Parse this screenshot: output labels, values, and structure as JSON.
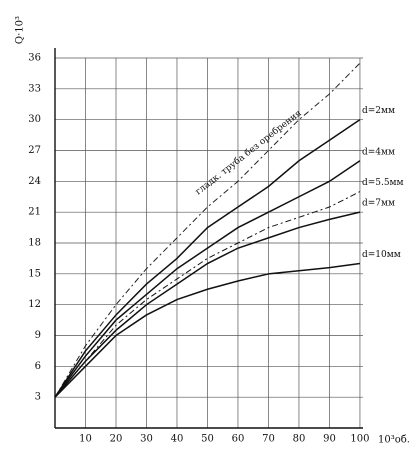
{
  "chart_data": {
    "type": "line",
    "y_label": "Q·10³",
    "x_label": "10³об.",
    "x": [
      0,
      10,
      20,
      30,
      40,
      50,
      60,
      70,
      80,
      90,
      100
    ],
    "series": [
      {
        "name": "гладк. труба без оребрения",
        "color": "#222",
        "dashed": true,
        "values": [
          3,
          8,
          12,
          15.5,
          18.5,
          21.5,
          24,
          27,
          30,
          32.5,
          35.5
        ]
      },
      {
        "name": "d=2мм",
        "color": "#111",
        "dashed": false,
        "values": [
          3,
          7.5,
          11,
          14,
          16.5,
          19.5,
          21.5,
          23.5,
          26,
          28,
          30
        ]
      },
      {
        "name": "d=4мм",
        "color": "#111",
        "dashed": false,
        "values": [
          3,
          7,
          10.5,
          13,
          15.5,
          17.5,
          19.5,
          21,
          22.5,
          24,
          26
        ]
      },
      {
        "name": "d=5.5мм",
        "color": "#111",
        "dashed": true,
        "values": [
          3,
          6.5,
          10,
          12.5,
          14.5,
          16.5,
          18,
          19.5,
          20.5,
          21.5,
          23
        ]
      },
      {
        "name": "d=7мм",
        "color": "#111",
        "dashed": false,
        "values": [
          3,
          6.5,
          9.5,
          12,
          14,
          16,
          17.5,
          18.5,
          19.5,
          20.3,
          21
        ]
      },
      {
        "name": "d=10мм",
        "color": "#111",
        "dashed": false,
        "values": [
          3,
          6,
          9,
          11,
          12.5,
          13.5,
          14.3,
          15,
          15.3,
          15.6,
          16
        ]
      }
    ],
    "xlim": [
      0,
      101
    ],
    "ylim": [
      0,
      36
    ],
    "xticks": [
      10,
      20,
      30,
      40,
      50,
      60,
      70,
      80,
      90,
      100
    ],
    "yticks": [
      3,
      6,
      9,
      12,
      15,
      18,
      21,
      24,
      27,
      30,
      33,
      36
    ],
    "grid": true
  }
}
